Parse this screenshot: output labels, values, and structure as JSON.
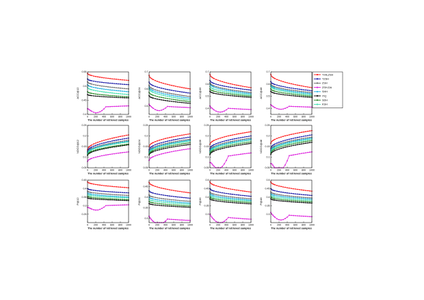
{
  "chart_data": {
    "type": "line",
    "layout": "3x4 grid of line subplots with a shared legend at the top-right",
    "xlabel": "The number of retrieved samples",
    "x_ticks": [
      0,
      200,
      400,
      600,
      800,
      1000
    ],
    "x": [
      0,
      25,
      50,
      75,
      100,
      150,
      200,
      250,
      300,
      350,
      400,
      450,
      500,
      550,
      600,
      650,
      700,
      750,
      800,
      850,
      900,
      950,
      1000
    ],
    "legend": {
      "placement": "top-right",
      "entries": [
        "T-MLZSH",
        "TZSH",
        "ZSH",
        "ZSH-DA",
        "SHH",
        "ITQ",
        "SDH",
        "KSH"
      ]
    },
    "colors": {
      "T-MLZSH": "#ff2020",
      "TZSH": "#1a1aa8",
      "ZSH": "#6e6e6e",
      "ZSH-DA": "#dd22dd",
      "SHH": "#20b0e0",
      "ITQ": "#101010",
      "SDH": "#2a8a2a",
      "KSH": "#40e0b0"
    },
    "grid": false,
    "panels": [
      {
        "ylabel": "ACC@12",
        "ylim": [
          0.4,
          0.55
        ],
        "yticks": [
          "0.4",
          "0.45",
          "0.5",
          "0.55"
        ],
        "series": [
          {
            "name": "T-MLZSH",
            "start": 0.545,
            "end": 0.52
          },
          {
            "name": "TZSH",
            "start": 0.525,
            "end": 0.505
          },
          {
            "name": "ZSH",
            "start": 0.515,
            "end": 0.49
          },
          {
            "name": "SHH",
            "start": 0.505,
            "end": 0.48
          },
          {
            "name": "KSH",
            "start": 0.495,
            "end": 0.47
          },
          {
            "name": "SDH",
            "start": 0.48,
            "end": 0.462
          },
          {
            "name": "ITQ",
            "start": 0.47,
            "end": 0.458
          },
          {
            "name": "ZSH-DA",
            "start": 0.42,
            "end": 0.43,
            "dip": true
          }
        ]
      },
      {
        "ylabel": "ACC@24",
        "ylim": [
          0.45,
          0.7
        ],
        "yticks": [
          "0.5",
          "0.6",
          "0.7"
        ],
        "series": [
          {
            "name": "T-MLZSH",
            "start": 0.68,
            "end": 0.6
          },
          {
            "name": "TZSH",
            "start": 0.64,
            "end": 0.575
          },
          {
            "name": "ZSH",
            "start": 0.62,
            "end": 0.555
          },
          {
            "name": "SHH",
            "start": 0.61,
            "end": 0.545
          },
          {
            "name": "KSH",
            "start": 0.6,
            "end": 0.535
          },
          {
            "name": "SDH",
            "start": 0.58,
            "end": 0.525
          },
          {
            "name": "ITQ",
            "start": 0.56,
            "end": 0.515
          },
          {
            "name": "ZSH-DA",
            "start": 0.51,
            "end": 0.49,
            "dip": true
          }
        ]
      },
      {
        "ylabel": "ACC@36",
        "ylim": [
          0.35,
          0.7
        ],
        "yticks": [
          "0.4",
          "0.5",
          "0.6",
          "0.7"
        ],
        "series": [
          {
            "name": "T-MLZSH",
            "start": 0.68,
            "end": 0.57
          },
          {
            "name": "TZSH",
            "start": 0.63,
            "end": 0.55
          },
          {
            "name": "ZSH",
            "start": 0.61,
            "end": 0.53
          },
          {
            "name": "SHH",
            "start": 0.6,
            "end": 0.52
          },
          {
            "name": "KSH",
            "start": 0.58,
            "end": 0.51
          },
          {
            "name": "SDH",
            "start": 0.56,
            "end": 0.5
          },
          {
            "name": "ITQ",
            "start": 0.54,
            "end": 0.49
          },
          {
            "name": "ZSH-DA",
            "start": 0.42,
            "end": 0.39,
            "dip": true
          }
        ]
      },
      {
        "ylabel": "ACC@48",
        "ylim": [
          0.35,
          0.7
        ],
        "yticks": [
          "0.4",
          "0.5",
          "0.6",
          "0.7"
        ],
        "series": [
          {
            "name": "T-MLZSH",
            "start": 0.68,
            "end": 0.57
          },
          {
            "name": "TZSH",
            "start": 0.62,
            "end": 0.545
          },
          {
            "name": "ZSH",
            "start": 0.6,
            "end": 0.53
          },
          {
            "name": "SHH",
            "start": 0.59,
            "end": 0.52
          },
          {
            "name": "KSH",
            "start": 0.58,
            "end": 0.51
          },
          {
            "name": "SDH",
            "start": 0.56,
            "end": 0.5
          },
          {
            "name": "ITQ",
            "start": 0.54,
            "end": 0.49
          },
          {
            "name": "ZSH-DA",
            "start": 0.43,
            "end": 0.41,
            "dip": true
          }
        ]
      },
      {
        "ylabel": "NDCG@12",
        "ylim": [
          0.05,
          0.25
        ],
        "yticks": [
          "0.05",
          "0.1",
          "0.15",
          "0.2",
          "0.25"
        ],
        "series": [
          {
            "name": "T-MLZSH",
            "start": 0.135,
            "end": 0.205
          },
          {
            "name": "TZSH",
            "start": 0.128,
            "end": 0.19
          },
          {
            "name": "ZSH",
            "start": 0.123,
            "end": 0.18
          },
          {
            "name": "SHH",
            "start": 0.12,
            "end": 0.175
          },
          {
            "name": "KSH",
            "start": 0.117,
            "end": 0.172
          },
          {
            "name": "SDH",
            "start": 0.112,
            "end": 0.162
          },
          {
            "name": "ITQ",
            "start": 0.108,
            "end": 0.158
          },
          {
            "name": "ZSH-DA",
            "start": 0.08,
            "end": 0.125
          }
        ]
      },
      {
        "ylabel": "NDCG@24",
        "ylim": [
          0.05,
          0.25
        ],
        "yticks": [
          "0.05",
          "0.1",
          "0.15",
          "0.2",
          "0.25"
        ],
        "series": [
          {
            "name": "T-MLZSH",
            "start": 0.15,
            "end": 0.21
          },
          {
            "name": "TZSH",
            "start": 0.135,
            "end": 0.195
          },
          {
            "name": "ZSH",
            "start": 0.128,
            "end": 0.185
          },
          {
            "name": "SHH",
            "start": 0.124,
            "end": 0.18
          },
          {
            "name": "KSH",
            "start": 0.12,
            "end": 0.176
          },
          {
            "name": "SDH",
            "start": 0.115,
            "end": 0.168
          },
          {
            "name": "ITQ",
            "start": 0.11,
            "end": 0.16
          },
          {
            "name": "ZSH-DA",
            "start": 0.085,
            "end": 0.14
          }
        ]
      },
      {
        "ylabel": "NDCG@36",
        "ylim": [
          0.05,
          0.25
        ],
        "yticks": [
          "0.05",
          "0.1",
          "0.15",
          "0.2",
          "0.25"
        ],
        "series": [
          {
            "name": "T-MLZSH",
            "start": 0.16,
            "end": 0.22
          },
          {
            "name": "TZSH",
            "start": 0.14,
            "end": 0.2
          },
          {
            "name": "ZSH",
            "start": 0.133,
            "end": 0.19
          },
          {
            "name": "SHH",
            "start": 0.128,
            "end": 0.185
          },
          {
            "name": "KSH",
            "start": 0.124,
            "end": 0.18
          },
          {
            "name": "SDH",
            "start": 0.118,
            "end": 0.172
          },
          {
            "name": "ITQ",
            "start": 0.112,
            "end": 0.165
          },
          {
            "name": "ZSH-DA",
            "start": 0.075,
            "end": 0.12,
            "dip": true
          }
        ]
      },
      {
        "ylabel": "NDCG@48",
        "ylim": [
          0.05,
          0.25
        ],
        "yticks": [
          "0.05",
          "0.1",
          "0.15",
          "0.2",
          "0.25"
        ],
        "series": [
          {
            "name": "T-MLZSH",
            "start": 0.165,
            "end": 0.225
          },
          {
            "name": "TZSH",
            "start": 0.142,
            "end": 0.205
          },
          {
            "name": "ZSH",
            "start": 0.135,
            "end": 0.195
          },
          {
            "name": "SHH",
            "start": 0.13,
            "end": 0.19
          },
          {
            "name": "KSH",
            "start": 0.126,
            "end": 0.185
          },
          {
            "name": "SDH",
            "start": 0.12,
            "end": 0.178
          },
          {
            "name": "ITQ",
            "start": 0.113,
            "end": 0.17
          },
          {
            "name": "ZSH-DA",
            "start": 0.07,
            "end": 0.125,
            "dip": true
          }
        ]
      },
      {
        "ylabel": "P@12",
        "ylim": [
          0.2,
          0.45
        ],
        "yticks": [
          "0.25",
          "0.3",
          "0.35",
          "0.4",
          "0.45"
        ],
        "series": [
          {
            "name": "T-MLZSH",
            "start": 0.44,
            "end": 0.405
          },
          {
            "name": "TZSH",
            "start": 0.4,
            "end": 0.375
          },
          {
            "name": "ZSH",
            "start": 0.385,
            "end": 0.36
          },
          {
            "name": "SHH",
            "start": 0.375,
            "end": 0.35
          },
          {
            "name": "KSH",
            "start": 0.365,
            "end": 0.345
          },
          {
            "name": "SDH",
            "start": 0.355,
            "end": 0.335
          },
          {
            "name": "ITQ",
            "start": 0.345,
            "end": 0.33
          },
          {
            "name": "ZSH-DA",
            "start": 0.29,
            "end": 0.305,
            "dip": true
          }
        ]
      },
      {
        "ylabel": "P@24",
        "ylim": [
          0.28,
          0.48
        ],
        "yticks": [
          "0.3",
          "0.35",
          "0.4",
          "0.45"
        ],
        "series": [
          {
            "name": "T-MLZSH",
            "start": 0.47,
            "end": 0.42
          },
          {
            "name": "TZSH",
            "start": 0.43,
            "end": 0.395
          },
          {
            "name": "ZSH",
            "start": 0.41,
            "end": 0.38
          },
          {
            "name": "SHH",
            "start": 0.4,
            "end": 0.372
          },
          {
            "name": "KSH",
            "start": 0.39,
            "end": 0.366
          },
          {
            "name": "SDH",
            "start": 0.38,
            "end": 0.358
          },
          {
            "name": "ITQ",
            "start": 0.37,
            "end": 0.352
          },
          {
            "name": "ZSH-DA",
            "start": 0.31,
            "end": 0.29,
            "dip": true
          }
        ]
      },
      {
        "ylabel": "P@36",
        "ylim": [
          0.25,
          0.5
        ],
        "yticks": [
          "0.3",
          "0.35",
          "0.4",
          "0.45",
          "0.5"
        ],
        "series": [
          {
            "name": "T-MLZSH",
            "start": 0.49,
            "end": 0.43
          },
          {
            "name": "TZSH",
            "start": 0.45,
            "end": 0.405
          },
          {
            "name": "ZSH",
            "start": 0.43,
            "end": 0.39
          },
          {
            "name": "SHH",
            "start": 0.42,
            "end": 0.382
          },
          {
            "name": "KSH",
            "start": 0.41,
            "end": 0.376
          },
          {
            "name": "SDH",
            "start": 0.4,
            "end": 0.368
          },
          {
            "name": "ITQ",
            "start": 0.39,
            "end": 0.36
          },
          {
            "name": "ZSH-DA",
            "start": 0.3,
            "end": 0.27,
            "dip": true
          }
        ]
      },
      {
        "ylabel": "P@48",
        "ylim": [
          0.25,
          0.5
        ],
        "yticks": [
          "0.3",
          "0.35",
          "0.4",
          "0.45",
          "0.5"
        ],
        "series": [
          {
            "name": "T-MLZSH",
            "start": 0.49,
            "end": 0.435
          },
          {
            "name": "TZSH",
            "start": 0.45,
            "end": 0.41
          },
          {
            "name": "ZSH",
            "start": 0.43,
            "end": 0.395
          },
          {
            "name": "SHH",
            "start": 0.42,
            "end": 0.388
          },
          {
            "name": "KSH",
            "start": 0.41,
            "end": 0.38
          },
          {
            "name": "SDH",
            "start": 0.4,
            "end": 0.372
          },
          {
            "name": "ITQ",
            "start": 0.39,
            "end": 0.365
          },
          {
            "name": "ZSH-DA",
            "start": 0.31,
            "end": 0.285,
            "dip": true
          }
        ]
      }
    ]
  }
}
